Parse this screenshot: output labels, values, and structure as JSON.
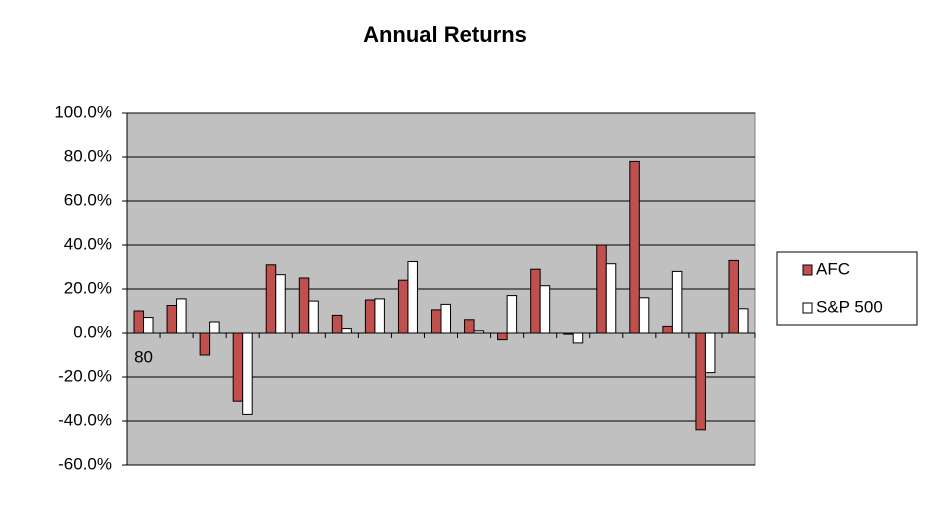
{
  "chart_data": {
    "type": "bar",
    "title": "Annual Returns",
    "categories": [
      "80",
      null,
      null,
      null,
      null,
      null,
      null,
      null,
      null,
      null,
      null,
      null,
      null,
      null,
      null,
      null,
      null,
      null,
      null
    ],
    "series": [
      {
        "name": "AFC",
        "color": "#c0504d",
        "values": [
          10,
          12.5,
          -10,
          -31,
          31,
          25,
          8,
          15,
          24,
          10.5,
          6,
          -3,
          29,
          -0.5,
          40,
          78,
          3,
          -44,
          33
        ]
      },
      {
        "name": "S&P 500",
        "color": "#ffffff",
        "values": [
          7,
          15.5,
          5,
          -37,
          26.5,
          14.5,
          2,
          15.5,
          32.5,
          13,
          1,
          17,
          21.5,
          -4.5,
          31.5,
          16,
          28,
          -18,
          11
        ]
      }
    ],
    "ylim": [
      -60,
      100
    ],
    "yticks": [
      {
        "value": -60,
        "label": "-60.0%"
      },
      {
        "value": -40,
        "label": "-40.0%"
      },
      {
        "value": -20,
        "label": "-20.0%"
      },
      {
        "value": 0,
        "label": "0.0%"
      },
      {
        "value": 20,
        "label": "20.0%"
      },
      {
        "value": 40,
        "label": "40.0%"
      },
      {
        "value": 60,
        "label": "60.0%"
      },
      {
        "value": 80,
        "label": "80.0%"
      },
      {
        "value": 100,
        "label": "100.0%"
      }
    ],
    "grid": true,
    "legend": "right",
    "background": "#c0c0c0"
  }
}
